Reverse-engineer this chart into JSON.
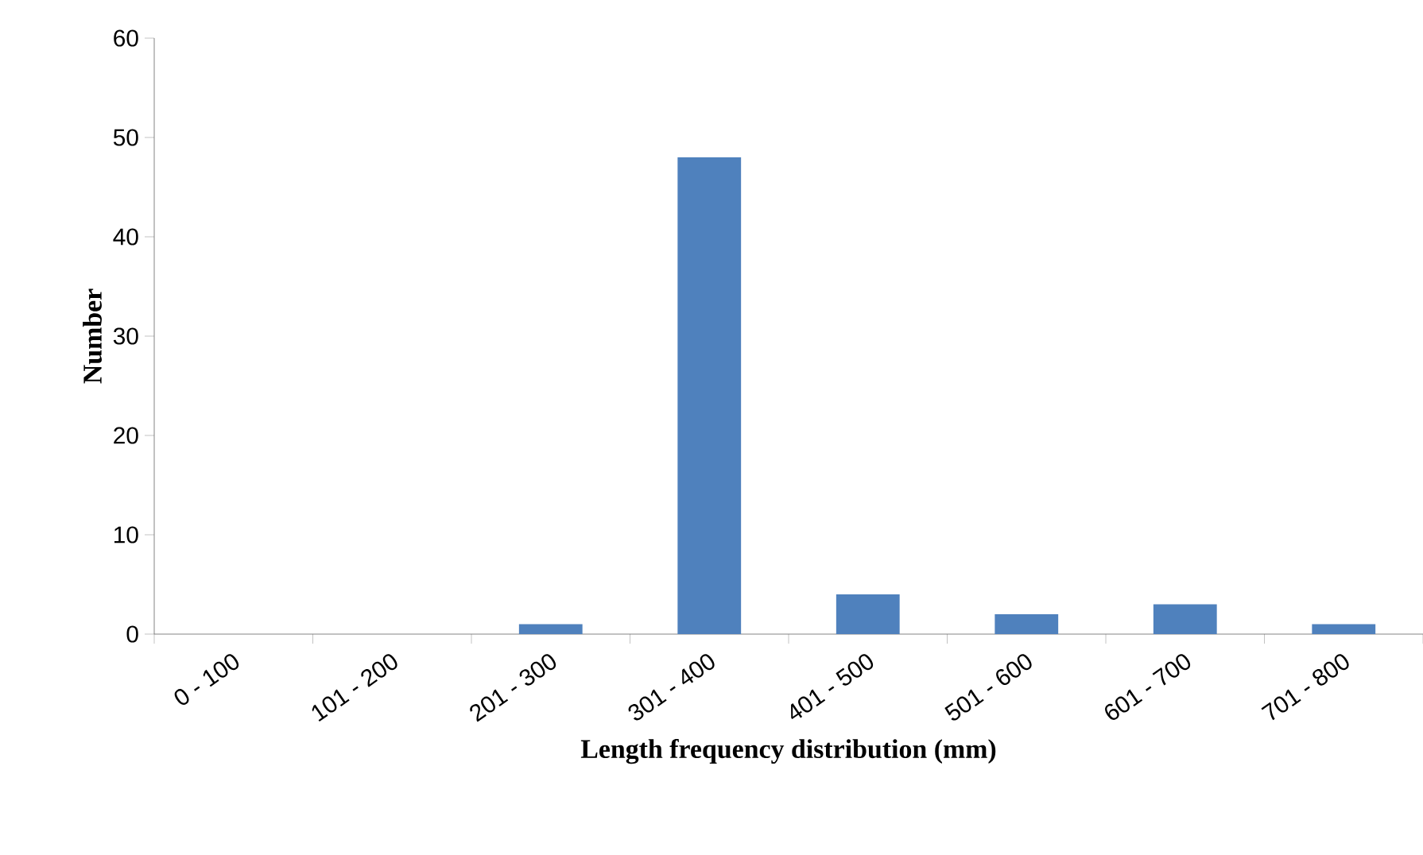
{
  "chart_data": {
    "type": "bar",
    "categories": [
      "0 - 100",
      "101 - 200",
      "201 - 300",
      "301 - 400",
      "401 - 500",
      "501 - 600",
      "601 - 700",
      "701 - 800"
    ],
    "values": [
      0,
      0,
      1,
      48,
      4,
      2,
      3,
      1
    ],
    "color": "#4f81bd",
    "xlabel": "Length frequency distribution (mm)",
    "ylabel": "Number",
    "ylim": [
      0,
      60
    ],
    "yticks": [
      0,
      10,
      20,
      30,
      40,
      50,
      60
    ]
  }
}
